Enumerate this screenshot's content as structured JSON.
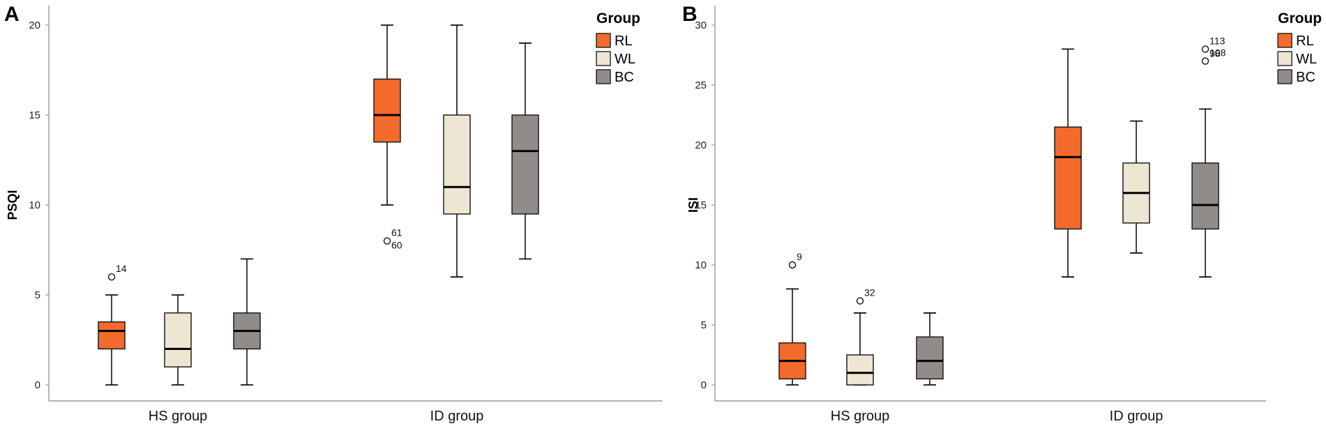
{
  "chart_data": [
    {
      "panel": "A",
      "type": "boxplot",
      "ylabel": "PSQI",
      "ylim": [
        0,
        20
      ],
      "yticks": [
        0,
        5,
        10,
        15,
        20
      ],
      "categories": [
        "HS group",
        "ID group"
      ],
      "legend": {
        "title": "Group",
        "position": "top-right",
        "entries": [
          "RL",
          "WL",
          "BC"
        ]
      },
      "series": [
        {
          "name": "RL",
          "color": "#F26B2D",
          "boxes": [
            {
              "whisker_low": 0,
              "q1": 2,
              "median": 3,
              "q3": 3.5,
              "whisker_high": 5,
              "outliers": [
                {
                  "value": 6,
                  "label": "14"
                }
              ]
            },
            {
              "whisker_low": 10,
              "q1": 13.5,
              "median": 15,
              "q3": 17,
              "whisker_high": 20,
              "outliers": [
                {
                  "value": 8,
                  "label": "61"
                },
                {
                  "value": 8,
                  "label": "60"
                }
              ]
            }
          ]
        },
        {
          "name": "WL",
          "color": "#EDE6D3",
          "boxes": [
            {
              "whisker_low": 0,
              "q1": 1,
              "median": 2,
              "q3": 4,
              "whisker_high": 5,
              "outliers": []
            },
            {
              "whisker_low": 6,
              "q1": 9.5,
              "median": 11,
              "q3": 15,
              "whisker_high": 20,
              "outliers": []
            }
          ]
        },
        {
          "name": "BC",
          "color": "#918C8A",
          "boxes": [
            {
              "whisker_low": 0,
              "q1": 2,
              "median": 3,
              "q3": 4,
              "whisker_high": 7,
              "outliers": []
            },
            {
              "whisker_low": 7,
              "q1": 9.5,
              "median": 13,
              "q3": 15,
              "whisker_high": 19,
              "outliers": []
            }
          ]
        }
      ]
    },
    {
      "panel": "B",
      "type": "boxplot",
      "ylabel": "ISI",
      "ylim": [
        0,
        30
      ],
      "yticks": [
        0,
        5,
        10,
        15,
        20,
        25,
        30
      ],
      "categories": [
        "HS group",
        "ID group"
      ],
      "legend": {
        "title": "Group",
        "position": "top-right",
        "entries": [
          "RL",
          "WL",
          "BC"
        ]
      },
      "series": [
        {
          "name": "RL",
          "color": "#F26B2D",
          "boxes": [
            {
              "whisker_low": 0,
              "q1": 0.5,
              "median": 2,
              "q3": 3.5,
              "whisker_high": 8,
              "outliers": [
                {
                  "value": 10,
                  "label": "9"
                }
              ]
            },
            {
              "whisker_low": 9,
              "q1": 13,
              "median": 19,
              "q3": 21.5,
              "whisker_high": 28,
              "outliers": []
            }
          ]
        },
        {
          "name": "WL",
          "color": "#EDE6D3",
          "boxes": [
            {
              "whisker_low": 0,
              "q1": 0,
              "median": 1,
              "q3": 2.5,
              "whisker_high": 6,
              "outliers": [
                {
                  "value": 7,
                  "label": "32"
                }
              ]
            },
            {
              "whisker_low": 11,
              "q1": 13.5,
              "median": 16,
              "q3": 18.5,
              "whisker_high": 22,
              "outliers": []
            }
          ]
        },
        {
          "name": "BC",
          "color": "#918C8A",
          "boxes": [
            {
              "whisker_low": 0,
              "q1": 0.5,
              "median": 2,
              "q3": 4,
              "whisker_high": 6,
              "outliers": []
            },
            {
              "whisker_low": 9,
              "q1": 13,
              "median": 15,
              "q3": 18.5,
              "whisker_high": 23,
              "outliers": [
                {
                  "value": 28,
                  "label": "113"
                },
                {
                  "value": 28,
                  "label": "98"
                },
                {
                  "value": 27,
                  "label": "108"
                }
              ]
            }
          ]
        }
      ]
    }
  ]
}
